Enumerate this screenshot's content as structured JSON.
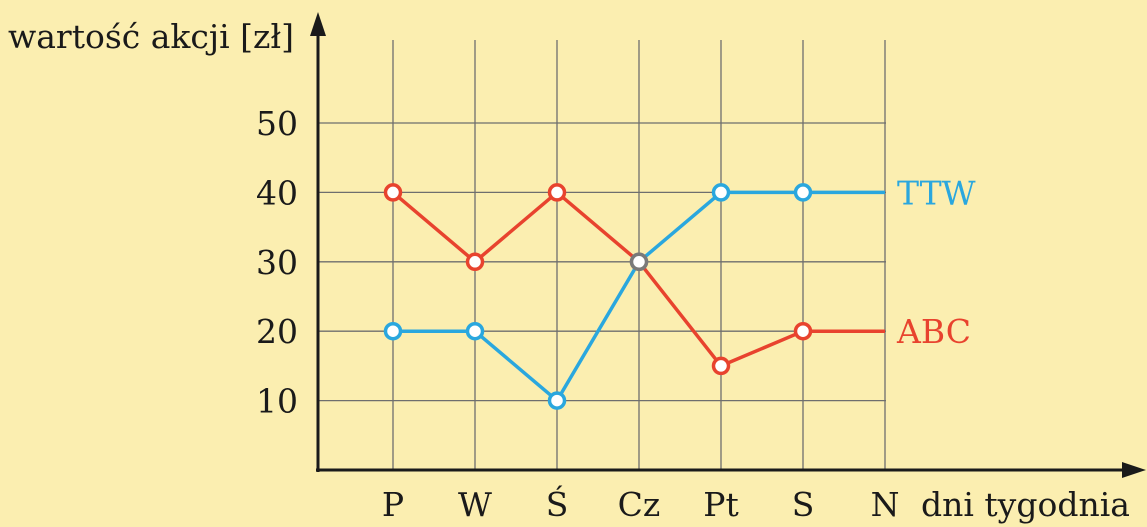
{
  "colors": {
    "background": "#fbeeb0",
    "grid": "#6e6e6e",
    "axis": "#1a1a1a",
    "text": "#1a1a1a",
    "crossing_point": "#7a7a7a"
  },
  "chart_data": {
    "type": "line",
    "ylabel": "wartość akcji [zł]",
    "xlabel": "dni tygodnia",
    "categories": [
      "P",
      "W",
      "Ś",
      "Cz",
      "Pt",
      "S",
      "N"
    ],
    "yticks": [
      10,
      20,
      30,
      40,
      50
    ],
    "ylim": [
      0,
      50
    ],
    "grid": true,
    "legend": "series labels at right end of lines",
    "series": [
      {
        "name": "TTW",
        "color": "#2aa7de",
        "values": [
          20,
          20,
          10,
          30,
          40,
          40,
          40
        ]
      },
      {
        "name": "ABC",
        "color": "#e8432e",
        "values": [
          40,
          30,
          40,
          30,
          15,
          20,
          20
        ]
      }
    ]
  }
}
